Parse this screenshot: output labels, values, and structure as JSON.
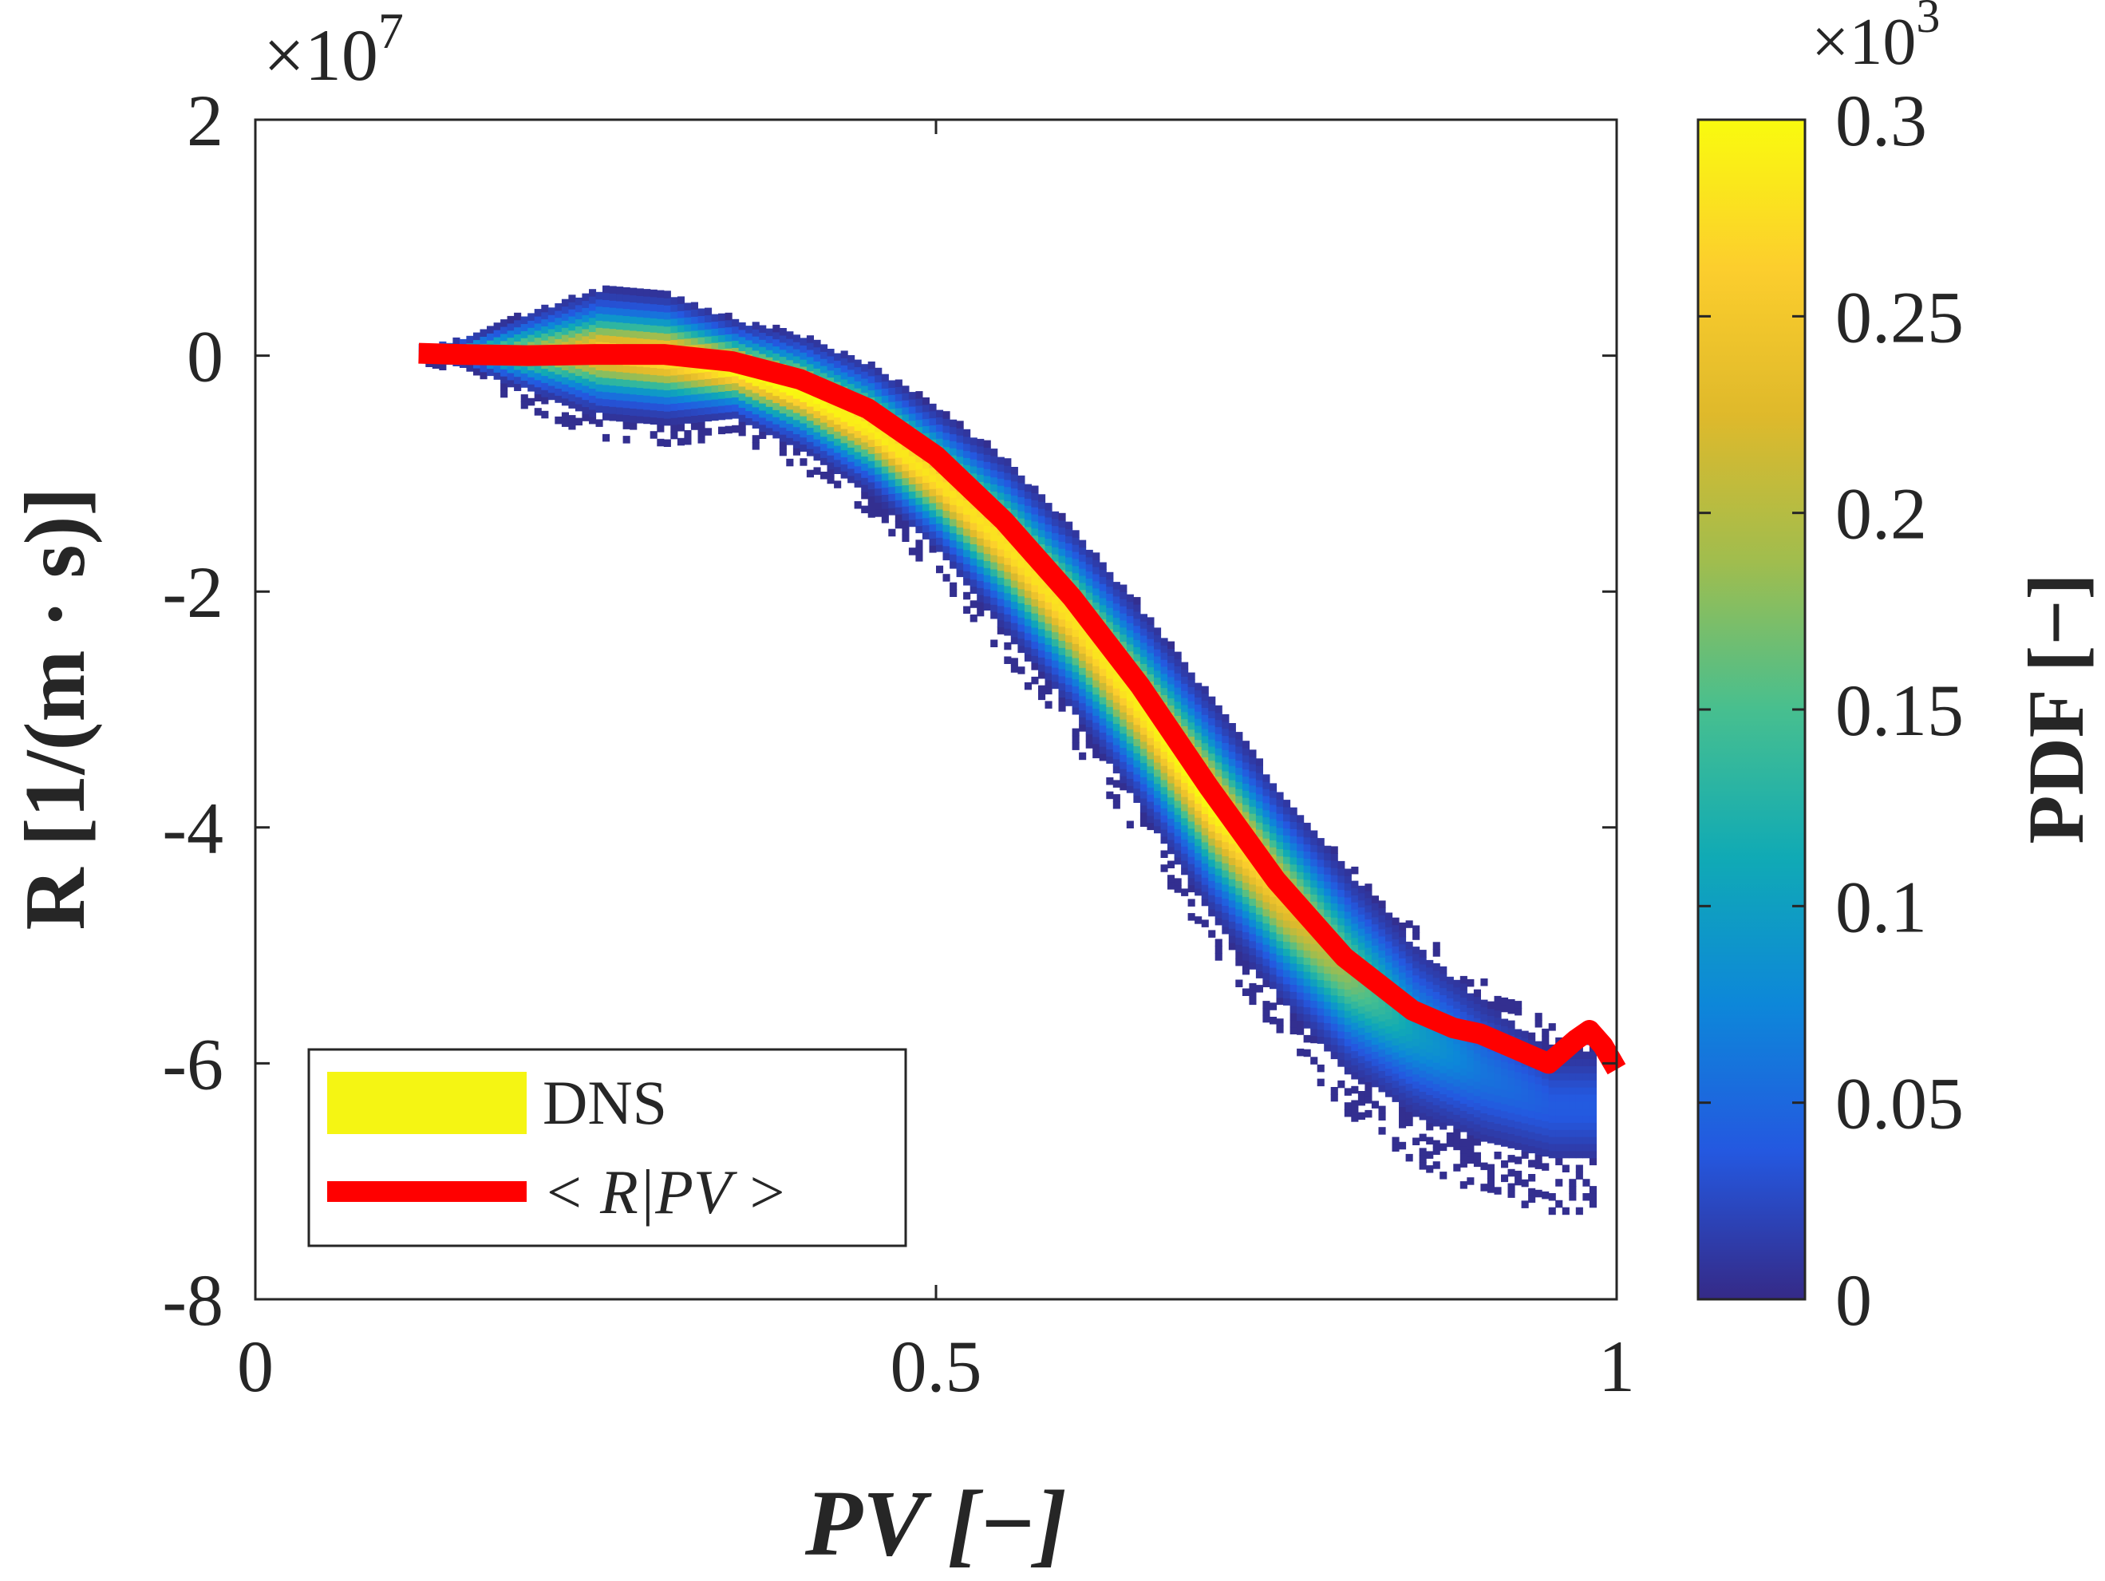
{
  "chart_data": {
    "type": "heatmap",
    "title": "",
    "xlabel": "PV [−]",
    "ylabel": "R [1/(m · s)]",
    "xlim": [
      0,
      1
    ],
    "ylim": [
      -8,
      2
    ],
    "x_ticks": [
      0,
      0.5,
      1
    ],
    "x_tick_labels": [
      "0",
      "0.5",
      "1"
    ],
    "y_ticks": [
      2,
      0,
      -2,
      -4,
      -6,
      -8
    ],
    "y_tick_labels": [
      "2",
      "0",
      "-2",
      "-4",
      "-6",
      "-8"
    ],
    "y_multiplier": "×10",
    "y_multiplier_exp": "7",
    "colorbar": {
      "label": "PDF [−]",
      "range": [
        0,
        0.3
      ],
      "ticks": [
        0,
        0.05,
        0.1,
        0.15,
        0.2,
        0.25,
        0.3
      ],
      "tick_labels": [
        "0",
        "0.05",
        "0.1",
        "0.15",
        "0.2",
        "0.25",
        "0.3"
      ],
      "multiplier": "×10",
      "multiplier_exp": "3",
      "colormap": "parula",
      "colors": [
        "#352a87",
        "#2458e0",
        "#0d87d9",
        "#10aab5",
        "#47bf8f",
        "#a0bd4e",
        "#dfb92b",
        "#fcce2d",
        "#f9fb0e"
      ]
    },
    "legend": {
      "location": "bottom-left",
      "entries": [
        {
          "label": "DNS",
          "color": "#f5f513",
          "kind": "patch"
        },
        {
          "label": "< R|PV >",
          "color": "#ff0000",
          "kind": "line"
        }
      ]
    },
    "conditional_mean": {
      "name": "< R|PV >",
      "color": "#ff0000",
      "x": [
        0.12,
        0.15,
        0.2,
        0.25,
        0.3,
        0.35,
        0.4,
        0.45,
        0.5,
        0.55,
        0.6,
        0.65,
        0.7,
        0.75,
        0.8,
        0.85,
        0.88,
        0.9,
        0.92,
        0.95,
        0.97,
        0.98,
        0.99,
        1.0
      ],
      "y": [
        0.02,
        0.01,
        0.0,
        0.01,
        0.01,
        -0.05,
        -0.2,
        -0.45,
        -0.85,
        -1.4,
        -2.05,
        -2.8,
        -3.65,
        -4.45,
        -5.1,
        -5.55,
        -5.7,
        -5.75,
        -5.85,
        -6.0,
        -5.8,
        -5.72,
        -5.85,
        -6.05
      ]
    },
    "joint_pdf": {
      "name": "DNS",
      "description_x": [
        0.12,
        0.15,
        0.2,
        0.25,
        0.3,
        0.35,
        0.4,
        0.45,
        0.5,
        0.55,
        0.6,
        0.65,
        0.7,
        0.75,
        0.8,
        0.85,
        0.9,
        0.95
      ],
      "ridge_y": [
        0.0,
        0.0,
        0.0,
        0.0,
        -0.05,
        -0.15,
        -0.35,
        -0.65,
        -1.1,
        -1.65,
        -2.3,
        -3.05,
        -3.85,
        -4.6,
        -5.25,
        -5.75,
        -6.1,
        -6.4
      ],
      "spread": [
        0.05,
        0.1,
        0.3,
        0.45,
        0.45,
        0.35,
        0.4,
        0.45,
        0.5,
        0.6,
        0.65,
        0.7,
        0.75,
        0.75,
        0.75,
        0.7,
        0.65,
        0.55
      ],
      "peak_pdf": [
        0.12,
        0.15,
        0.2,
        0.26,
        0.28,
        0.3,
        0.3,
        0.29,
        0.28,
        0.28,
        0.28,
        0.29,
        0.3,
        0.25,
        0.18,
        0.1,
        0.06,
        0.04
      ]
    }
  }
}
